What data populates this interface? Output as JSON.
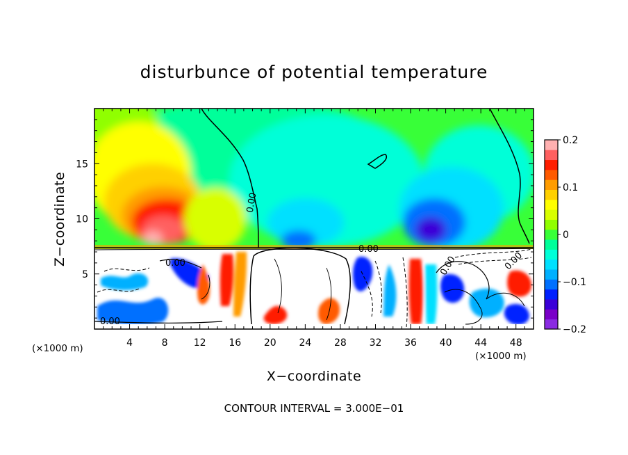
{
  "chart_data": {
    "type": "heatmap",
    "title": "disturbunce of potential temperature",
    "xlabel": "X−coordinate",
    "ylabel": "Z−coordinate",
    "x_unit_left": "(×1000 m)",
    "x_unit_right": "(×1000 m)",
    "x_ticks": [
      "4",
      "8",
      "12",
      "16",
      "20",
      "24",
      "28",
      "32",
      "36",
      "40",
      "44",
      "48"
    ],
    "y_ticks": [
      "5",
      "10",
      "15"
    ],
    "xlim": [
      0,
      50
    ],
    "ylim": [
      0,
      20
    ],
    "colorbar": {
      "ticks": [
        "0.2",
        "0.1",
        "0",
        "−0.1",
        "−0.2"
      ],
      "range": [
        -0.2,
        0.2
      ],
      "colors": [
        "#8a2be2",
        "#7a00c8",
        "#3a00d8",
        "#0020ff",
        "#0070ff",
        "#00b0ff",
        "#00e0ff",
        "#00ffd8",
        "#00ff9a",
        "#38ff38",
        "#90ff00",
        "#d8ff00",
        "#ffff00",
        "#ffd000",
        "#ff9c00",
        "#ff5a00",
        "#ff1e00",
        "#ff6060",
        "#ffb0b0"
      ]
    },
    "contour_labels": [
      "0.00",
      "0.00",
      "0.00",
      "0.00",
      "0.00",
      "0.00"
    ],
    "contour_interval": "CONTOUR INTERVAL = 3.000E−01"
  }
}
